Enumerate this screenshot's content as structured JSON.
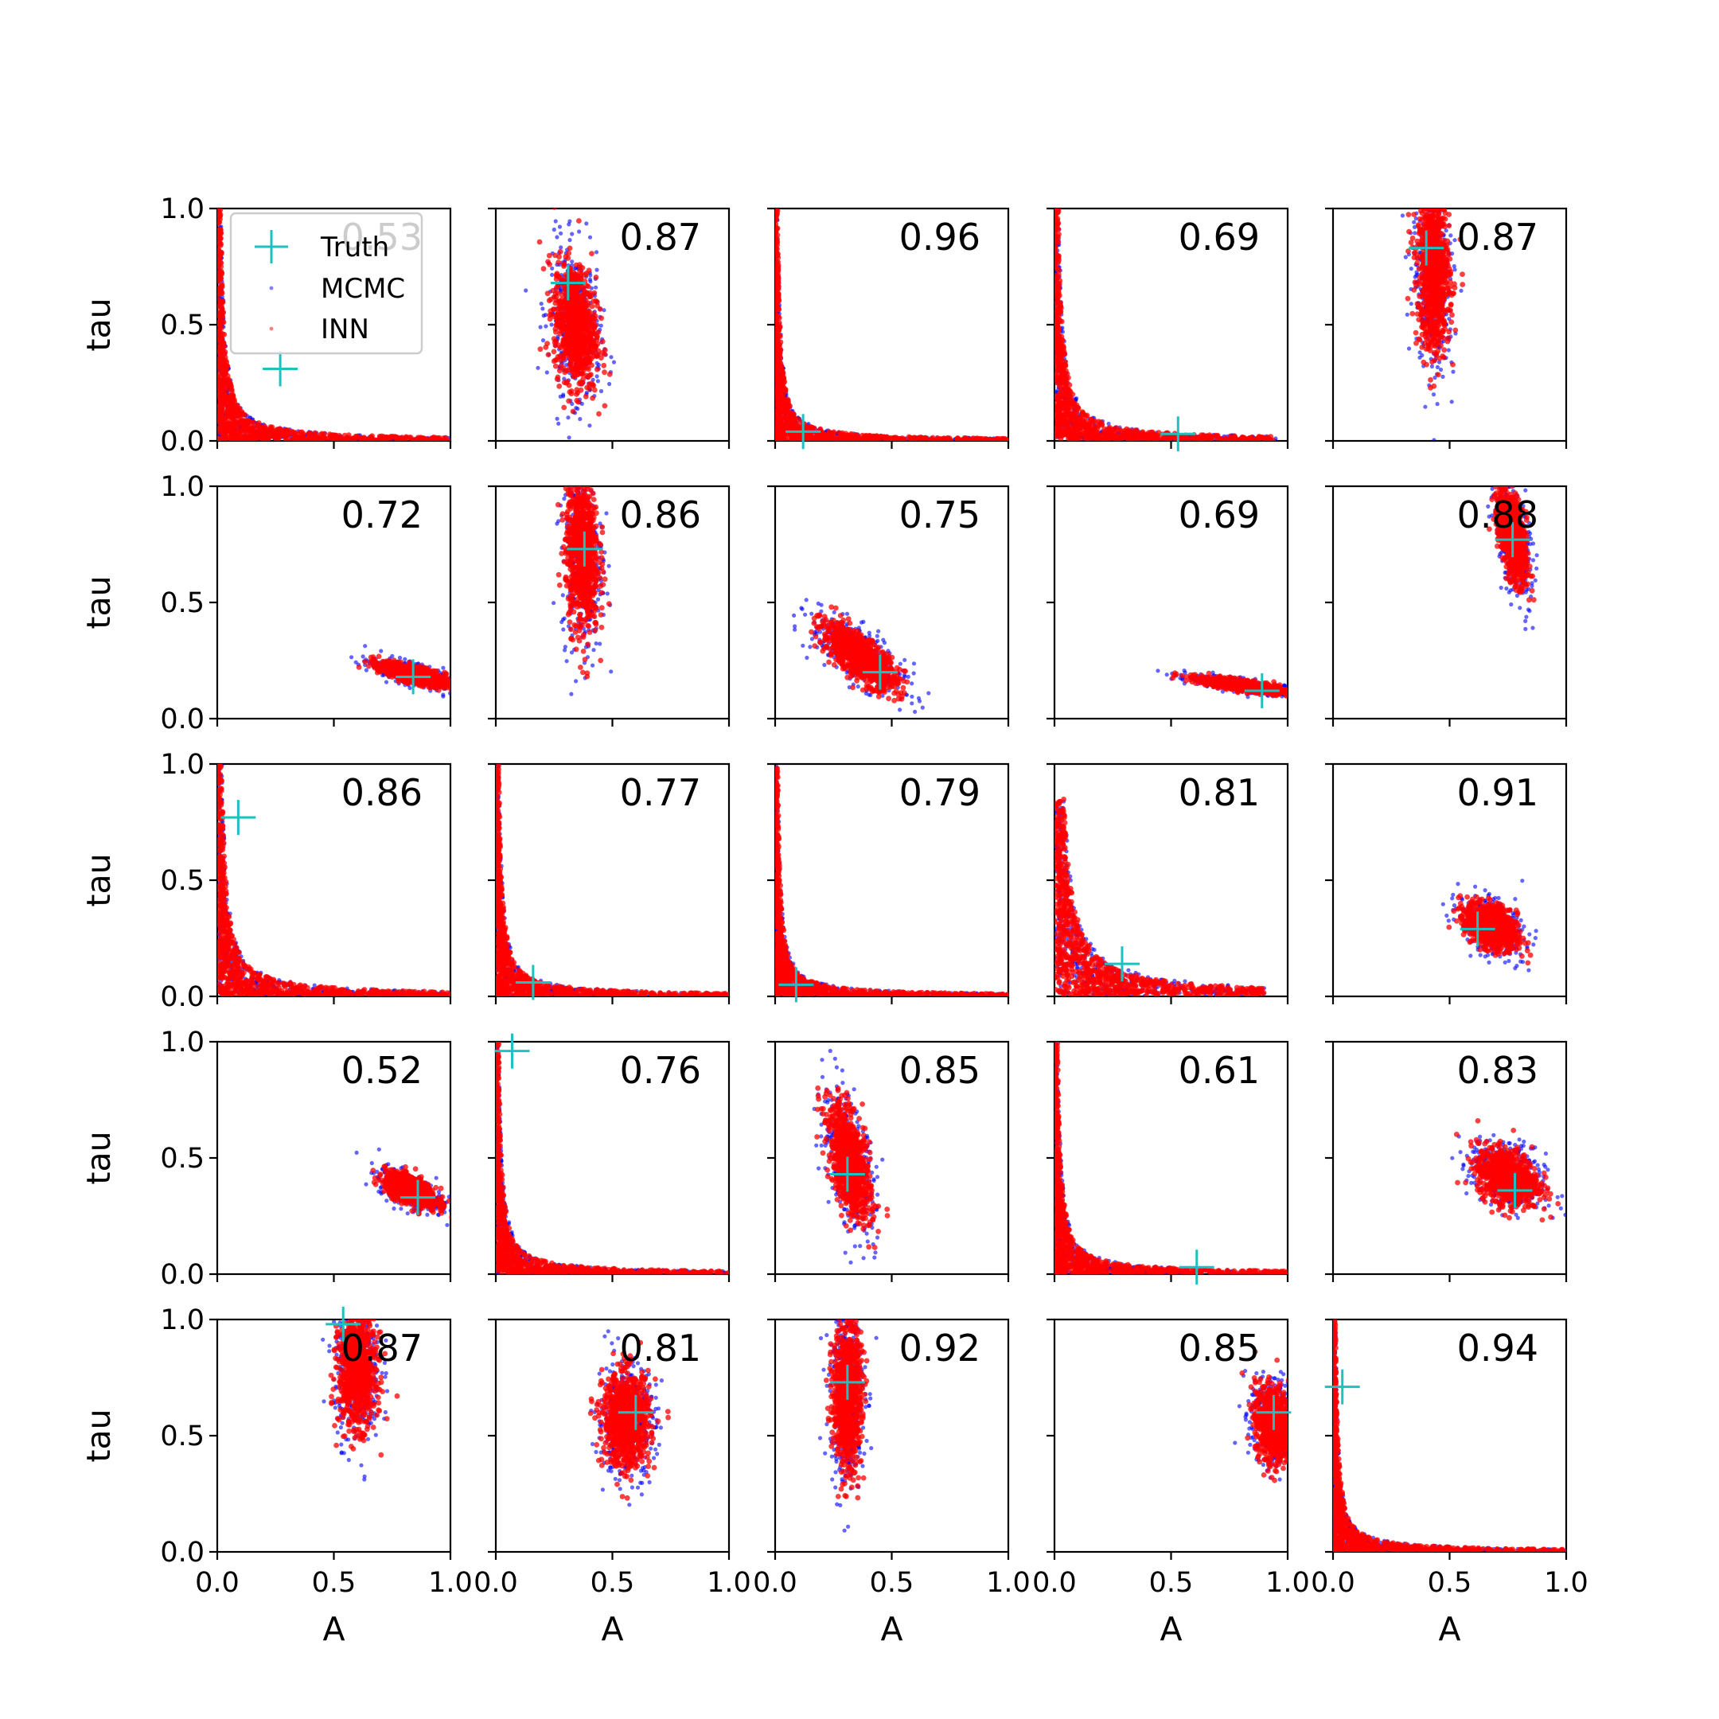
{
  "chart_data": {
    "type": "scatter",
    "layout": {
      "rows": 5,
      "cols": 5
    },
    "xlabel": "A",
    "ylabel": "tau",
    "xlim": [
      0,
      1
    ],
    "ylim": [
      0,
      1
    ],
    "xticks": [
      "0.0",
      "0.5",
      "1.0"
    ],
    "yticks": [
      "0.0",
      "0.5",
      "1.0"
    ],
    "grid": false,
    "legend": {
      "placement": "top-left of first panel",
      "entries": [
        "Truth",
        "MCMC",
        "INN"
      ]
    },
    "series_style": {
      "Truth": {
        "color": "#1ec0c0",
        "marker": "plus"
      },
      "MCMC": {
        "color": "#0000ff",
        "marker": "dot"
      },
      "INN": {
        "color": "#ff0000",
        "marker": "dot"
      }
    },
    "panels": [
      {
        "label": "0.53",
        "truth": [
          0.27,
          0.31
        ],
        "shape": "L",
        "a0": 0.07,
        "t0": 0.04,
        "amax": 1.0,
        "tmax": 1.0
      },
      {
        "label": "0.87",
        "truth": [
          0.31,
          0.68
        ],
        "shape": "blob",
        "ca": 0.34,
        "ct": 0.5,
        "sa": 0.045,
        "st": 0.13,
        "rho": -0.2
      },
      {
        "label": "0.96",
        "truth": [
          0.12,
          0.04
        ],
        "shape": "L",
        "a0": 0.03,
        "t0": 0.02,
        "amax": 1.0,
        "tmax": 1.0
      },
      {
        "label": "0.69",
        "truth": [
          0.53,
          0.03
        ],
        "shape": "L",
        "a0": 0.08,
        "t0": 0.05,
        "amax": 0.95,
        "tmax": 1.0
      },
      {
        "label": "0.87",
        "truth": [
          0.4,
          0.83
        ],
        "shape": "blob",
        "ca": 0.43,
        "ct": 0.72,
        "sa": 0.035,
        "st": 0.17,
        "rho": -0.1
      },
      {
        "label": "0.72",
        "truth": [
          0.84,
          0.18
        ],
        "shape": "blob",
        "ca": 0.84,
        "ct": 0.19,
        "sa": 0.07,
        "st": 0.025,
        "rho": -0.7
      },
      {
        "label": "0.86",
        "truth": [
          0.38,
          0.73
        ],
        "shape": "blob",
        "ca": 0.37,
        "ct": 0.72,
        "sa": 0.035,
        "st": 0.17,
        "rho": -0.1
      },
      {
        "label": "0.75",
        "truth": [
          0.45,
          0.2
        ],
        "shape": "blob",
        "ca": 0.36,
        "ct": 0.27,
        "sa": 0.08,
        "st": 0.07,
        "rho": -0.75
      },
      {
        "label": "0.69",
        "truth": [
          0.89,
          0.12
        ],
        "shape": "blob",
        "ca": 0.82,
        "ct": 0.14,
        "sa": 0.1,
        "st": 0.018,
        "rho": -0.8
      },
      {
        "label": "0.88",
        "truth": [
          0.77,
          0.77
        ],
        "shape": "blob",
        "ca": 0.77,
        "ct": 0.78,
        "sa": 0.03,
        "st": 0.1,
        "rho": -0.5
      },
      {
        "label": "0.86",
        "truth": [
          0.09,
          0.77
        ],
        "shape": "L",
        "a0": 0.1,
        "t0": 0.05,
        "amax": 1.0,
        "tmax": 1.0
      },
      {
        "label": "0.77",
        "truth": [
          0.16,
          0.06
        ],
        "shape": "L",
        "a0": 0.06,
        "t0": 0.03,
        "amax": 1.0,
        "tmax": 1.0
      },
      {
        "label": "0.79",
        "truth": [
          0.09,
          0.05
        ],
        "shape": "L",
        "a0": 0.04,
        "t0": 0.02,
        "amax": 1.0,
        "tmax": 1.0
      },
      {
        "label": "0.81",
        "truth": [
          0.29,
          0.14
        ],
        "shape": "L",
        "a0": 0.13,
        "t0": 0.1,
        "amax": 0.9,
        "tmax": 0.85
      },
      {
        "label": "0.91",
        "truth": [
          0.62,
          0.29
        ],
        "shape": "blob",
        "ca": 0.68,
        "ct": 0.3,
        "sa": 0.055,
        "st": 0.05,
        "rho": -0.4
      },
      {
        "label": "0.52",
        "truth": [
          0.86,
          0.33
        ],
        "shape": "blob",
        "ca": 0.83,
        "ct": 0.36,
        "sa": 0.055,
        "st": 0.035,
        "rho": -0.6
      },
      {
        "label": "0.76",
        "truth": [
          0.07,
          0.96
        ],
        "shape": "L",
        "a0": 0.05,
        "t0": 0.03,
        "amax": 1.0,
        "tmax": 1.0
      },
      {
        "label": "0.85",
        "truth": [
          0.31,
          0.43
        ],
        "shape": "blob",
        "ca": 0.32,
        "ct": 0.48,
        "sa": 0.045,
        "st": 0.12,
        "rho": -0.55
      },
      {
        "label": "0.61",
        "truth": [
          0.61,
          0.03
        ],
        "shape": "L",
        "a0": 0.05,
        "t0": 0.04,
        "amax": 1.0,
        "tmax": 1.0
      },
      {
        "label": "0.83",
        "truth": [
          0.78,
          0.36
        ],
        "shape": "blob",
        "ca": 0.75,
        "ct": 0.42,
        "sa": 0.065,
        "st": 0.06,
        "rho": -0.3
      },
      {
        "label": "0.87",
        "truth": [
          0.54,
          0.98
        ],
        "shape": "blob",
        "ca": 0.6,
        "ct": 0.78,
        "sa": 0.04,
        "st": 0.12,
        "rho": 0.0
      },
      {
        "label": "0.81",
        "truth": [
          0.6,
          0.6
        ],
        "shape": "blob",
        "ca": 0.56,
        "ct": 0.57,
        "sa": 0.05,
        "st": 0.1,
        "rho": 0.0
      },
      {
        "label": "0.92",
        "truth": [
          0.31,
          0.73
        ],
        "shape": "blob",
        "ca": 0.31,
        "ct": 0.68,
        "sa": 0.03,
        "st": 0.16,
        "rho": 0.0
      },
      {
        "label": "0.85",
        "truth": [
          0.94,
          0.6
        ],
        "shape": "blob",
        "ca": 0.94,
        "ct": 0.55,
        "sa": 0.04,
        "st": 0.08,
        "rho": -0.2
      },
      {
        "label": "0.94",
        "truth": [
          0.04,
          0.71
        ],
        "shape": "L",
        "a0": 0.03,
        "t0": 0.02,
        "amax": 1.0,
        "tmax": 1.0
      }
    ]
  }
}
